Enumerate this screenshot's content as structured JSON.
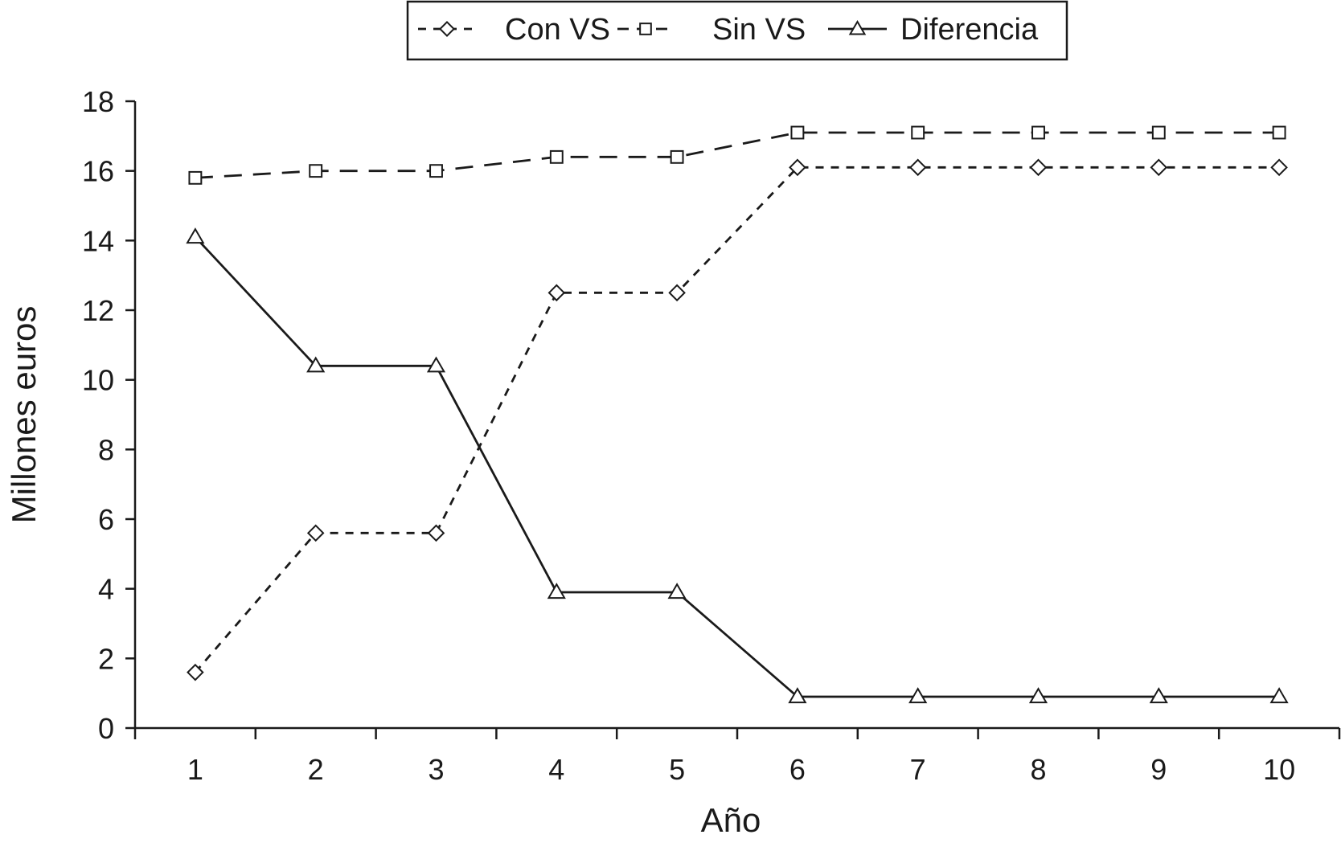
{
  "chart_data": {
    "type": "line",
    "title": "",
    "xlabel": "Año",
    "ylabel": "Millones euros",
    "x": [
      1,
      2,
      3,
      4,
      5,
      6,
      7,
      8,
      9,
      10
    ],
    "xlim": [
      0.5,
      10.5
    ],
    "ylim": [
      0,
      18
    ],
    "yticks": [
      0,
      2,
      4,
      6,
      8,
      10,
      12,
      14,
      16,
      18
    ],
    "grid": false,
    "legend_position": "top-center",
    "series": [
      {
        "name": "Con VS",
        "marker": "diamond",
        "line_style": "dashed",
        "color": "#1a1a1a",
        "values": [
          1.6,
          5.6,
          5.6,
          12.5,
          12.5,
          16.1,
          16.1,
          16.1,
          16.1,
          16.1
        ]
      },
      {
        "name": "Sin VS",
        "marker": "square",
        "line_style": "long-dashed",
        "color": "#1a1a1a",
        "values": [
          15.8,
          16.0,
          16.0,
          16.4,
          16.4,
          17.1,
          17.1,
          17.1,
          17.1,
          17.1
        ]
      },
      {
        "name": "Diferencia",
        "marker": "triangle",
        "line_style": "solid",
        "color": "#1a1a1a",
        "values": [
          14.1,
          10.4,
          10.4,
          3.9,
          3.9,
          0.9,
          0.9,
          0.9,
          0.9,
          0.9
        ]
      }
    ]
  }
}
